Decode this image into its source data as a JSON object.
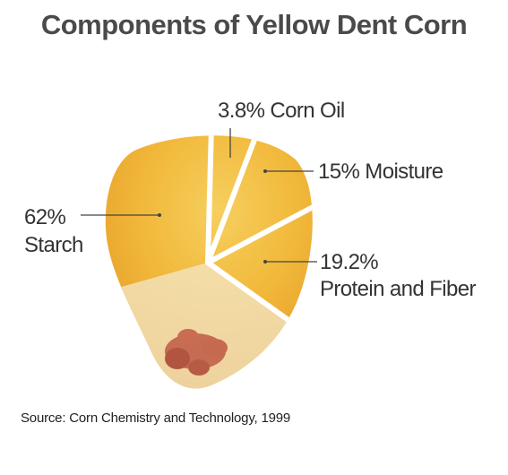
{
  "chart_data": {
    "type": "pie",
    "title": "Components of Yellow Dent Corn",
    "slices": [
      {
        "name": "Starch",
        "value": 62,
        "pct_label": "62%",
        "label": "Starch"
      },
      {
        "name": "Corn Oil",
        "value": 3.8,
        "pct_label": "3.8%",
        "label": "Corn Oil"
      },
      {
        "name": "Moisture",
        "value": 15,
        "pct_label": "15%",
        "label": "Moisture"
      },
      {
        "name": "Protein and Fiber",
        "value": 19.2,
        "pct_label": "19.2%",
        "label": "Protein and Fiber"
      }
    ],
    "source": "Source: Corn Chemistry and Technology, 1999"
  },
  "labels": {
    "starch_line1": "62%",
    "starch_line2": "Starch",
    "oil": "3.8% Corn Oil",
    "moisture": "15% Moisture",
    "protein_line1": "19.2%",
    "protein_line2": "Protein and Fiber"
  }
}
